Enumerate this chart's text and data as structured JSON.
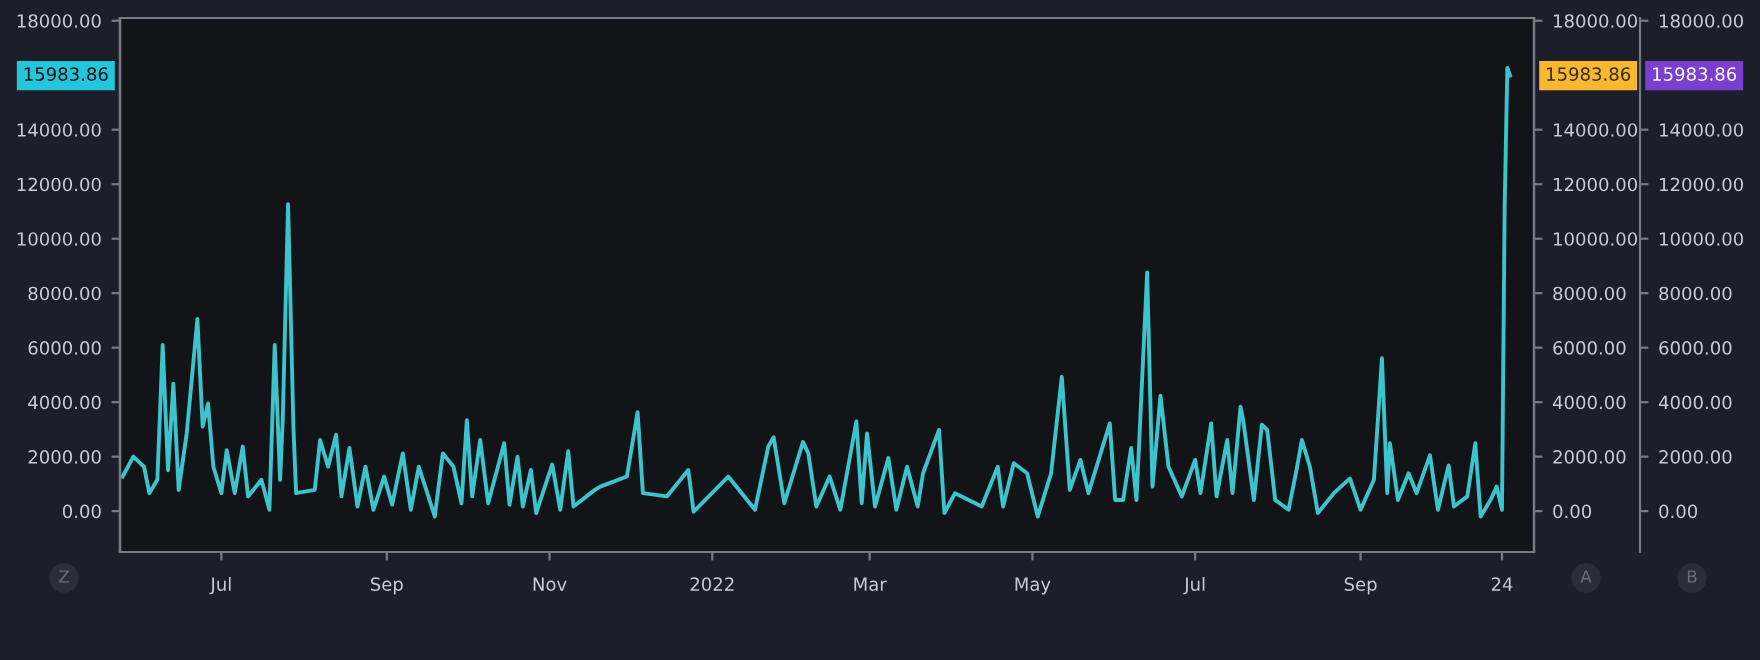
{
  "chart_data": {
    "type": "line",
    "x": [
      "2021-05-25",
      "2021-05-29",
      "2021-06-02",
      "2021-06-04",
      "2021-06-07",
      "2021-06-09",
      "2021-06-11",
      "2021-06-13",
      "2021-06-15",
      "2021-06-18",
      "2021-06-22",
      "2021-06-24",
      "2021-06-26",
      "2021-06-28",
      "2021-07-01",
      "2021-07-03",
      "2021-07-06",
      "2021-07-09",
      "2021-07-11",
      "2021-07-16",
      "2021-07-19",
      "2021-07-21",
      "2021-07-23",
      "2021-07-24",
      "2021-07-26",
      "2021-07-28",
      "2021-07-29",
      "2021-08-05",
      "2021-08-07",
      "2021-08-10",
      "2021-08-13",
      "2021-08-15",
      "2021-08-18",
      "2021-08-21",
      "2021-08-24",
      "2021-08-27",
      "2021-08-31",
      "2021-09-03",
      "2021-09-07",
      "2021-09-10",
      "2021-09-13",
      "2021-09-19",
      "2021-09-22",
      "2021-09-26",
      "2021-09-29",
      "2021-10-01",
      "2021-10-03",
      "2021-10-06",
      "2021-10-09",
      "2021-10-15",
      "2021-10-17",
      "2021-10-20",
      "2021-10-22",
      "2021-10-25",
      "2021-10-27",
      "2021-11-02",
      "2021-11-05",
      "2021-11-08",
      "2021-11-10",
      "2021-11-18",
      "2021-11-20",
      "2021-11-30",
      "2021-12-04",
      "2021-12-06",
      "2021-12-15",
      "2021-12-23",
      "2021-12-25",
      "2022-01-07",
      "2022-01-17",
      "2022-01-22",
      "2022-01-24",
      "2022-01-28",
      "2022-02-04",
      "2022-02-06",
      "2022-02-09",
      "2022-02-14",
      "2022-02-18",
      "2022-02-24",
      "2022-02-26",
      "2022-02-28",
      "2022-03-03",
      "2022-03-08",
      "2022-03-11",
      "2022-03-15",
      "2022-03-19",
      "2022-03-21",
      "2022-03-27",
      "2022-03-29",
      "2022-04-02",
      "2022-04-12",
      "2022-04-18",
      "2022-04-20",
      "2022-04-24",
      "2022-04-29",
      "2022-05-03",
      "2022-05-08",
      "2022-05-12",
      "2022-05-15",
      "2022-05-19",
      "2022-05-22",
      "2022-05-30",
      "2022-06-01",
      "2022-06-04",
      "2022-06-07",
      "2022-06-09",
      "2022-06-13",
      "2022-06-15",
      "2022-06-18",
      "2022-06-21",
      "2022-06-26",
      "2022-07-01",
      "2022-07-03",
      "2022-07-07",
      "2022-07-09",
      "2022-07-13",
      "2022-07-15",
      "2022-07-18",
      "2022-07-19",
      "2022-07-23",
      "2022-07-26",
      "2022-07-28",
      "2022-07-31",
      "2022-08-05",
      "2022-08-08",
      "2022-08-10",
      "2022-08-13",
      "2022-08-16",
      "2022-08-22",
      "2022-08-28",
      "2022-09-01",
      "2022-09-06",
      "2022-09-09",
      "2022-09-11",
      "2022-09-12",
      "2022-09-15",
      "2022-09-19",
      "2022-09-22",
      "2022-09-27",
      "2022-09-30",
      "2022-10-04",
      "2022-10-06",
      "2022-10-11",
      "2022-10-14",
      "2022-10-16",
      "2022-10-20",
      "2022-10-22",
      "2022-10-24",
      "2022-10-25",
      "2022-10-26",
      "2022-10-27"
    ],
    "series": [
      {
        "color": "#3cc3cb",
        "values": [
          1270,
          2000,
          1630,
          660,
          1150,
          6100,
          1500,
          4680,
          780,
          2850,
          7050,
          3100,
          3950,
          1630,
          660,
          2240,
          660,
          2370,
          540,
          1150,
          50,
          6100,
          1150,
          3340,
          11270,
          3100,
          660,
          780,
          2610,
          1630,
          2800,
          540,
          2320,
          170,
          1630,
          50,
          1270,
          240,
          2120,
          50,
          1630,
          -200,
          2120,
          1630,
          290,
          3340,
          540,
          2610,
          290,
          2490,
          240,
          2000,
          170,
          1510,
          -70,
          1710,
          50,
          2200,
          170,
          780,
          900,
          1270,
          3630,
          660,
          540,
          1510,
          -20,
          1270,
          50,
          2370,
          2710,
          290,
          2540,
          2120,
          170,
          1270,
          50,
          3290,
          290,
          2850,
          170,
          1950,
          50,
          1630,
          170,
          1390,
          2980,
          -70,
          660,
          170,
          1630,
          170,
          1760,
          1390,
          -200,
          1390,
          4930,
          780,
          1880,
          660,
          3220,
          410,
          410,
          2320,
          410,
          8760,
          900,
          4240,
          1630,
          540,
          1880,
          660,
          3220,
          540,
          2610,
          660,
          3830,
          3340,
          410,
          3170,
          2980,
          410,
          50,
          1510,
          2610,
          1630,
          -70,
          660,
          1200,
          50,
          1150,
          5610,
          660,
          2490,
          410,
          1390,
          660,
          2050,
          50,
          1680,
          170,
          540,
          2490,
          -200,
          460,
          900,
          50,
          11150,
          16270,
          15983.86
        ]
      }
    ],
    "xlim": [
      "2021-05-24",
      "2022-11-05"
    ],
    "xticks": [
      {
        "value": "2021-07-01",
        "label": "Jul"
      },
      {
        "value": "2021-09-01",
        "label": "Sep"
      },
      {
        "value": "2021-11-01",
        "label": "Nov"
      },
      {
        "value": "2022-01-01",
        "label": "2022"
      },
      {
        "value": "2022-03-01",
        "label": "Mar"
      },
      {
        "value": "2022-05-01",
        "label": "May"
      },
      {
        "value": "2022-07-01",
        "label": "Jul"
      },
      {
        "value": "2022-09-01",
        "label": "Sep"
      },
      {
        "value": "2022-10-24",
        "label": "24"
      }
    ],
    "ylim": [
      -1500,
      18100
    ],
    "yticks": [
      {
        "value": 0,
        "label": "0.00"
      },
      {
        "value": 2000,
        "label": "2000.00"
      },
      {
        "value": 4000,
        "label": "4000.00"
      },
      {
        "value": 6000,
        "label": "6000.00"
      },
      {
        "value": 8000,
        "label": "8000.00"
      },
      {
        "value": 10000,
        "label": "10000.00"
      },
      {
        "value": 12000,
        "label": "12000.00"
      },
      {
        "value": 14000,
        "label": "14000.00"
      },
      {
        "value": 18000,
        "label": "18000.00"
      }
    ],
    "y2lim": [
      -1500,
      18100
    ],
    "y2ticks": [
      {
        "value": 0,
        "label": "0.00"
      },
      {
        "value": 2000,
        "label": "2000.00"
      },
      {
        "value": 4000,
        "label": "4000.00"
      },
      {
        "value": 6000,
        "label": "6000.00"
      },
      {
        "value": 8000,
        "label": "8000.00"
      },
      {
        "value": 10000,
        "label": "10000.00"
      },
      {
        "value": 12000,
        "label": "12000.00"
      },
      {
        "value": 14000,
        "label": "14000.00"
      },
      {
        "value": 18000,
        "label": "18000.00"
      }
    ],
    "y3lim": [
      -1500,
      18100
    ],
    "y3ticks": [
      {
        "value": 0,
        "label": "0.00"
      },
      {
        "value": 2000,
        "label": "2000.00"
      },
      {
        "value": 4000,
        "label": "4000.00"
      },
      {
        "value": 6000,
        "label": "6000.00"
      },
      {
        "value": 8000,
        "label": "8000.00"
      },
      {
        "value": 10000,
        "label": "10000.00"
      },
      {
        "value": 12000,
        "label": "12000.00"
      },
      {
        "value": 14000,
        "label": "14000.00"
      },
      {
        "value": 18000,
        "label": "18000.00"
      }
    ],
    "annotations": [
      "15983.86",
      "15983.86",
      "15983.86",
      "Z",
      "A",
      "B"
    ],
    "grid": false,
    "legend": false
  }
}
